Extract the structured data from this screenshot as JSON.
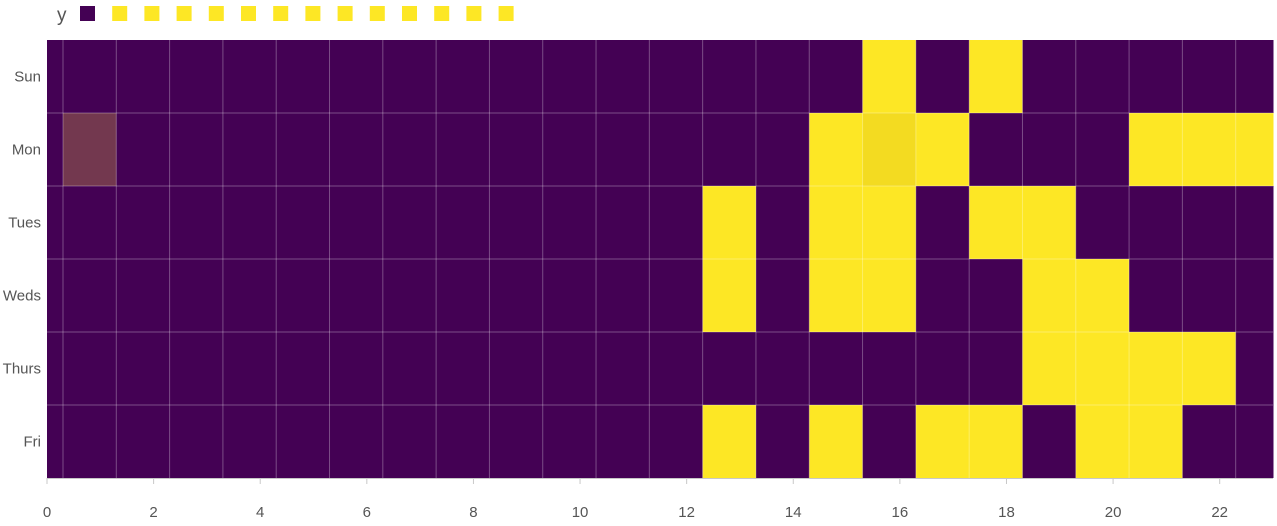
{
  "chart_data": {
    "type": "heatmap",
    "legend": {
      "title": "y",
      "swatches": 14,
      "swatch_colors": [
        "#440154",
        "#fde725",
        "#fde725",
        "#fde725",
        "#fde725",
        "#fde725",
        "#fde725",
        "#fde725",
        "#fde725",
        "#fde725",
        "#fde725",
        "#fde725",
        "#fde725",
        "#fde725"
      ]
    },
    "y_categories": [
      "Sun",
      "Mon",
      "Tues",
      "Weds",
      "Thurs",
      "Fri"
    ],
    "x_range": [
      0,
      23
    ],
    "x_ticks": [
      0,
      2,
      4,
      6,
      8,
      10,
      12,
      14,
      16,
      18,
      20,
      22
    ],
    "colors": {
      "low": "#440154",
      "high": "#fde725",
      "highlight_low": "#73384f",
      "highlight_high": "#f3db21",
      "grid": "#ffffff",
      "axis": "#c8c8c8",
      "label": "#555555"
    },
    "rows": [
      [
        0,
        0,
        0,
        0,
        0,
        0,
        0,
        0,
        0,
        0,
        0,
        0,
        0,
        0,
        0,
        1,
        0,
        1,
        0,
        0,
        0,
        0,
        0
      ],
      [
        0,
        0,
        0,
        0,
        0,
        0,
        0,
        0,
        0,
        0,
        0,
        0,
        0,
        0,
        1,
        1,
        1,
        0,
        0,
        0,
        1,
        1,
        1
      ],
      [
        0,
        0,
        0,
        0,
        0,
        0,
        0,
        0,
        0,
        0,
        0,
        0,
        1,
        0,
        1,
        1,
        0,
        1,
        1,
        0,
        0,
        0,
        0
      ],
      [
        0,
        0,
        0,
        0,
        0,
        0,
        0,
        0,
        0,
        0,
        0,
        0,
        1,
        0,
        1,
        1,
        0,
        0,
        1,
        1,
        0,
        0,
        0
      ],
      [
        0,
        0,
        0,
        0,
        0,
        0,
        0,
        0,
        0,
        0,
        0,
        0,
        0,
        0,
        0,
        0,
        0,
        0,
        1,
        1,
        1,
        1,
        0
      ],
      [
        0,
        0,
        0,
        0,
        0,
        0,
        0,
        0,
        0,
        0,
        0,
        0,
        1,
        0,
        1,
        0,
        1,
        1,
        0,
        1,
        1,
        0,
        0
      ]
    ],
    "highlighted_cells": [
      [
        1,
        0
      ],
      [
        1,
        15
      ]
    ]
  }
}
